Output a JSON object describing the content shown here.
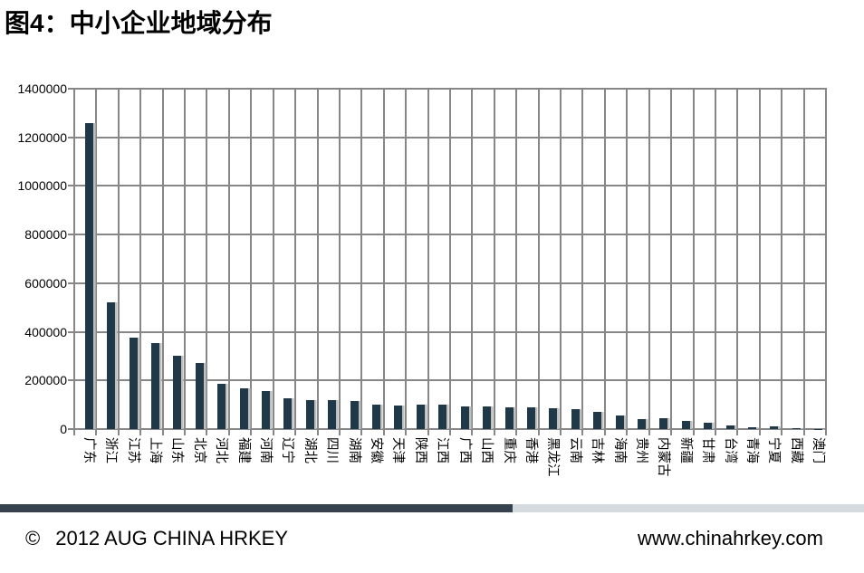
{
  "title": "图4：中小企业地域分布",
  "chart_data": {
    "type": "bar",
    "title": "图4：中小企业地域分布",
    "categories": [
      "广东",
      "浙江",
      "江苏",
      "上海",
      "山东",
      "北京",
      "河北",
      "福建",
      "河南",
      "辽宁",
      "湖北",
      "四川",
      "湖南",
      "安徽",
      "天津",
      "陕西",
      "江西",
      "广西",
      "山西",
      "重庆",
      "香港",
      "黑龙江",
      "云南",
      "吉林",
      "海南",
      "贵州",
      "内蒙古",
      "新疆",
      "甘肃",
      "台湾",
      "青海",
      "宁夏",
      "西藏",
      "澳门"
    ],
    "values": [
      1260000,
      520000,
      375000,
      355000,
      300000,
      272000,
      188000,
      168000,
      158000,
      128000,
      118000,
      118000,
      114000,
      100000,
      98000,
      102000,
      100000,
      92000,
      92000,
      89000,
      89000,
      87000,
      83000,
      70000,
      55000,
      40000,
      43000,
      35000,
      27000,
      15000,
      9000,
      12000,
      3000,
      1500
    ],
    "xlabel": "",
    "ylabel": "",
    "ylim": [
      0,
      1400000
    ],
    "ytick_step": 200000,
    "grid": "both",
    "legend": "none",
    "bar_color": "#1f3949",
    "gridline_color": "#878787"
  },
  "footer": {
    "copyright_symbol": "©",
    "copyright_text": "2012 AUG CHINA HRKEY",
    "website": "www.chinahrkey.com"
  }
}
